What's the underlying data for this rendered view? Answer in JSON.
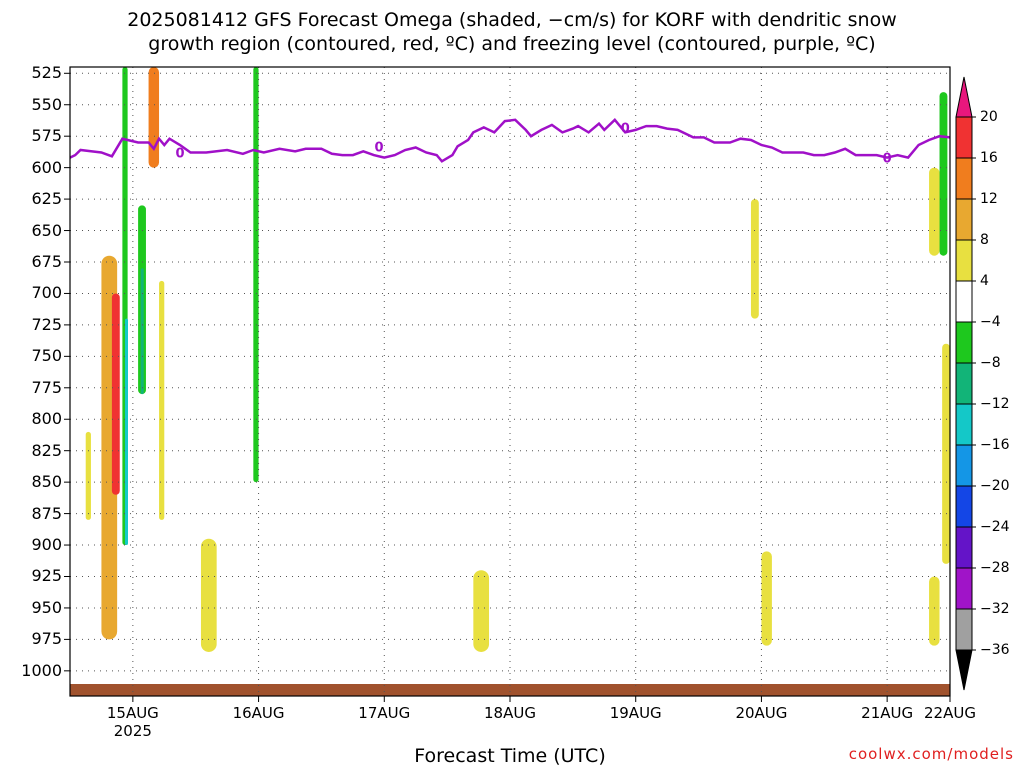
{
  "title_line1": "2025081412 GFS Forecast Omega (shaded, −cm/s) for KORF with dendritic snow",
  "title_line2": "growth region (contoured, red, ºC) and freezing level (contoured, purple, ºC)",
  "xaxis_title": "Forecast Time (UTC)",
  "credit": "coolwx.com/models",
  "chart_data": {
    "type": "heatmap",
    "title": "2025081412 GFS Forecast Omega (shaded, −cm/s) for KORF with dendritic snow growth region (contoured, red, ºC) and freezing level (contoured, purple, ºC)",
    "xlabel": "Forecast Time (UTC)",
    "ylabel": "",
    "y_axis": {
      "ticks": [
        525,
        550,
        575,
        600,
        625,
        650,
        675,
        700,
        725,
        750,
        775,
        800,
        825,
        850,
        875,
        900,
        925,
        950,
        975,
        1000
      ],
      "range": [
        1020,
        520
      ],
      "grid": true
    },
    "x_axis": {
      "range_hours": [
        12,
        180
      ],
      "ticks": [
        {
          "label": "15AUG",
          "sub": "2025",
          "hour": 24
        },
        {
          "label": "16AUG",
          "hour": 48
        },
        {
          "label": "17AUG",
          "hour": 72
        },
        {
          "label": "18AUG",
          "hour": 96
        },
        {
          "label": "19AUG",
          "hour": 120
        },
        {
          "label": "20AUG",
          "hour": 144
        },
        {
          "label": "21AUG",
          "hour": 168
        },
        {
          "label": "22AUG",
          "hour": 180
        }
      ]
    },
    "colorbar": {
      "labels": [
        20,
        16,
        12,
        8,
        4,
        -4,
        -8,
        -12,
        -16,
        -20,
        -24,
        -28,
        -32,
        -36
      ],
      "colors": [
        "#e8177d",
        "#f03232",
        "#f07d1e",
        "#e8a830",
        "#e8e040",
        "#ffffff",
        "#1ec81e",
        "#12b478",
        "#14c8c8",
        "#1496e6",
        "#1446e6",
        "#6414c8",
        "#a014c8",
        "#a0a0a0",
        "#000000"
      ]
    },
    "freezing_level": {
      "label": "0",
      "points": [
        [
          12,
          592
        ],
        [
          13,
          590
        ],
        [
          14,
          586
        ],
        [
          16,
          587
        ],
        [
          18,
          588
        ],
        [
          20,
          591
        ],
        [
          22,
          577
        ],
        [
          23,
          578
        ],
        [
          25,
          580
        ],
        [
          27,
          580
        ],
        [
          28,
          585
        ],
        [
          29,
          577
        ],
        [
          30,
          582
        ],
        [
          31,
          577
        ],
        [
          33,
          582
        ],
        [
          35,
          588
        ],
        [
          38,
          588
        ],
        [
          42,
          586
        ],
        [
          45,
          589
        ],
        [
          47,
          586
        ],
        [
          49,
          588
        ],
        [
          52,
          585
        ],
        [
          55,
          587
        ],
        [
          57,
          585
        ],
        [
          60,
          585
        ],
        [
          62,
          589
        ],
        [
          64,
          590
        ],
        [
          66,
          590
        ],
        [
          68,
          587
        ],
        [
          70,
          590
        ],
        [
          72,
          592
        ],
        [
          74,
          590
        ],
        [
          76,
          586
        ],
        [
          78,
          584
        ],
        [
          80,
          588
        ],
        [
          82,
          590
        ],
        [
          83,
          595
        ],
        [
          85,
          590
        ],
        [
          86,
          583
        ],
        [
          88,
          578
        ],
        [
          89,
          572
        ],
        [
          91,
          568
        ],
        [
          93,
          572
        ],
        [
          95,
          563
        ],
        [
          97,
          562
        ],
        [
          99,
          570
        ],
        [
          100,
          575
        ],
        [
          102,
          570
        ],
        [
          104,
          566
        ],
        [
          106,
          572
        ],
        [
          108,
          569
        ],
        [
          109,
          567
        ],
        [
          111,
          572
        ],
        [
          113,
          565
        ],
        [
          114,
          570
        ],
        [
          116,
          562
        ],
        [
          118,
          572
        ],
        [
          120,
          570
        ],
        [
          122,
          567
        ],
        [
          124,
          567
        ],
        [
          126,
          569
        ],
        [
          128,
          570
        ],
        [
          131,
          576
        ],
        [
          133,
          576
        ],
        [
          135,
          580
        ],
        [
          138,
          580
        ],
        [
          140,
          577
        ],
        [
          142,
          578
        ],
        [
          144,
          582
        ],
        [
          146,
          584
        ],
        [
          148,
          588
        ],
        [
          152,
          588
        ],
        [
          154,
          590
        ],
        [
          156,
          590
        ],
        [
          158,
          588
        ],
        [
          160,
          585
        ],
        [
          162,
          590
        ],
        [
          164,
          590
        ],
        [
          166,
          590
        ],
        [
          168,
          592
        ],
        [
          170,
          590
        ],
        [
          172,
          592
        ],
        [
          174,
          582
        ],
        [
          176,
          578
        ],
        [
          178,
          575
        ],
        [
          180,
          576
        ]
      ]
    },
    "shaded_regions": [
      {
        "omega": 4,
        "hour": [
          15,
          16
        ],
        "p": [
          810,
          880
        ]
      },
      {
        "omega": 8,
        "hour": [
          18,
          21
        ],
        "p": [
          670,
          975
        ]
      },
      {
        "omega": 16,
        "hour": [
          20,
          21.5
        ],
        "p": [
          700,
          860
        ]
      },
      {
        "omega": -8,
        "hour": [
          22,
          23
        ],
        "p": [
          520,
          900
        ]
      },
      {
        "omega": -16,
        "hour": [
          22.5,
          23
        ],
        "p": [
          720,
          900
        ]
      },
      {
        "omega": 12,
        "hour": [
          27,
          29
        ],
        "p": [
          520,
          600
        ]
      },
      {
        "omega": -8,
        "hour": [
          25,
          26.5
        ],
        "p": [
          630,
          780
        ]
      },
      {
        "omega": -12,
        "hour": [
          25.5,
          26
        ],
        "p": [
          680,
          780
        ]
      },
      {
        "omega": 4,
        "hour": [
          29,
          30
        ],
        "p": [
          690,
          880
        ]
      },
      {
        "omega": 4,
        "hour": [
          37,
          40
        ],
        "p": [
          895,
          985
        ]
      },
      {
        "omega": -8,
        "hour": [
          47,
          48
        ],
        "p": [
          520,
          850
        ]
      },
      {
        "omega": 4,
        "hour": [
          89,
          92
        ],
        "p": [
          920,
          985
        ]
      },
      {
        "omega": 4,
        "hour": [
          142,
          143.5
        ],
        "p": [
          625,
          720
        ]
      },
      {
        "omega": 4,
        "hour": [
          144,
          146
        ],
        "p": [
          905,
          980
        ]
      },
      {
        "omega": -8,
        "hour": [
          178,
          179.5
        ],
        "p": [
          540,
          670
        ]
      },
      {
        "omega": 4,
        "hour": [
          176,
          178
        ],
        "p": [
          600,
          670
        ]
      },
      {
        "omega": 4,
        "hour": [
          178.5,
          180
        ],
        "p": [
          740,
          915
        ]
      },
      {
        "omega": 4,
        "hour": [
          176,
          178
        ],
        "p": [
          925,
          980
        ]
      }
    ]
  }
}
